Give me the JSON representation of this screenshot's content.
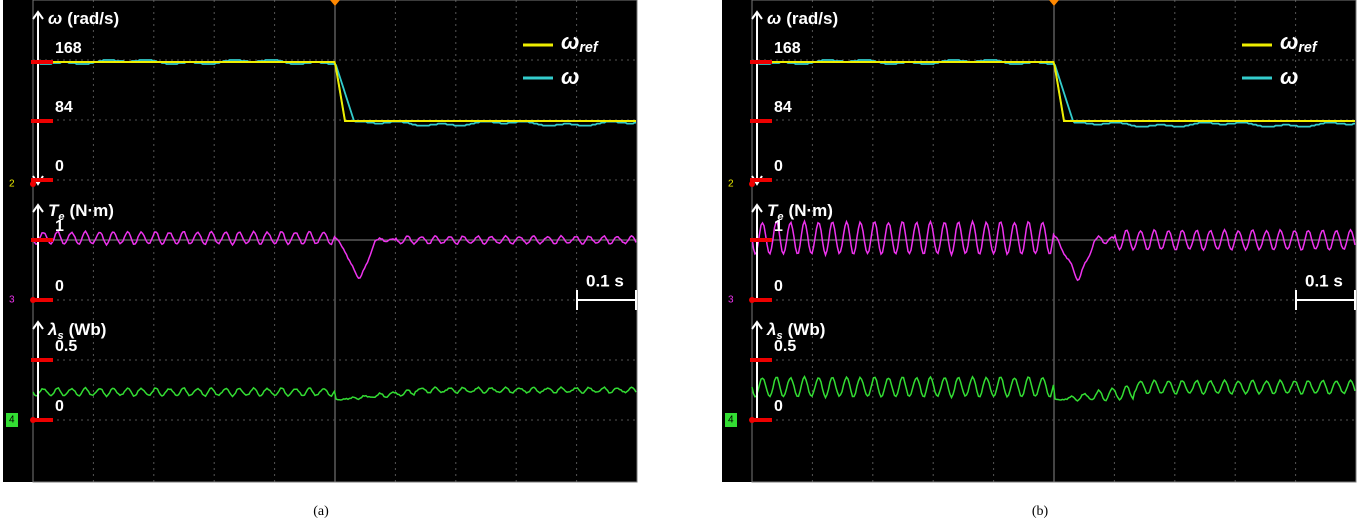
{
  "panels": [
    {
      "caption": "(a)",
      "speed_symbol": "ω",
      "speed_unit": "(rad/s)",
      "speed_ticks": [
        "168",
        "84",
        "0"
      ],
      "torque_symbol": "T",
      "torque_sub": "e",
      "torque_unit": "(N·m)",
      "torque_ticks": [
        "1",
        "0"
      ],
      "flux_symbol": "λ",
      "flux_sub": "s",
      "flux_unit": "(Wb)",
      "flux_ticks": [
        "0.5",
        "0"
      ],
      "legend_ref_symbol": "ω",
      "legend_ref_sub": "ref",
      "legend_speed": "ω",
      "time_scale": "0.1 s",
      "channels": [
        "2",
        "3",
        "4"
      ]
    },
    {
      "caption": "(b)",
      "speed_symbol": "ω",
      "speed_unit": "(rad/s)",
      "speed_ticks": [
        "168",
        "84",
        "0"
      ],
      "torque_symbol": "T",
      "torque_sub": "e",
      "torque_unit": "(N·m)",
      "torque_ticks": [
        "1",
        "0"
      ],
      "flux_symbol": "λ",
      "flux_sub": "s",
      "flux_unit": "(Wb)",
      "flux_ticks": [
        "0.5",
        "0"
      ],
      "legend_ref_symbol": "ω",
      "legend_ref_sub": "ref",
      "legend_speed": "ω",
      "time_scale": "0.1 s",
      "channels": [
        "2",
        "3",
        "4"
      ]
    }
  ]
}
